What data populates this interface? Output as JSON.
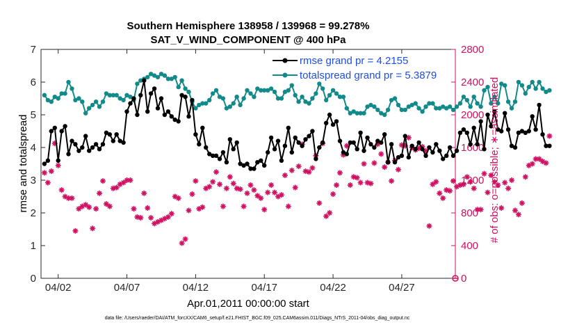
{
  "chart_data": {
    "type": "line",
    "title": "Southern Hemisphere 138958 / 139968 = 99.278%",
    "subtitle": "SAT_V_WIND_COMPONENT @ 400 hPa",
    "xlabel": "Apr.01,2011 00:00:00 start",
    "ylabel": "rmse and totalspread",
    "y2label": "# of obs: o=possible; ∗=assimilated",
    "footnote": "data file: /Users/raeder/DAI/ATM_forcXX/CAM6_setup/f.e21.FHIST_BGC.f09_025.CAM6assim.011/Diags_NTrS_2011-04/obs_diag_output.nc",
    "xlim": [
      0.75,
      30.9
    ],
    "ylim": [
      0,
      7
    ],
    "y2lim": [
      0,
      2800
    ],
    "xticks": [
      {
        "x": 2,
        "label": "04/02"
      },
      {
        "x": 7,
        "label": "04/07"
      },
      {
        "x": 12,
        "label": "04/12"
      },
      {
        "x": 17,
        "label": "04/17"
      },
      {
        "x": 22,
        "label": "04/22"
      },
      {
        "x": 27,
        "label": "04/27"
      }
    ],
    "yticks": [
      "0",
      "1",
      "2",
      "3",
      "4",
      "5",
      "6",
      "7"
    ],
    "y2ticks": [
      "0",
      "400",
      "800",
      "1200",
      "1600",
      "2000",
      "2400",
      "2800"
    ],
    "colors": {
      "rmse": "#000000",
      "spread": "#138a8a",
      "obs": "#d01060",
      "legend_text": "#1f4fe0",
      "right_axis": "#d01060"
    },
    "series": [
      {
        "name": "rmse grand pr = 4.2155",
        "x_start": 1.0,
        "x_step": 0.25,
        "values": [
          3.5,
          3.6,
          4.5,
          4.6,
          3.6,
          4.5,
          4.65,
          3.8,
          4.2,
          4.1,
          3.9,
          4.0,
          4.35,
          3.9,
          4.0,
          4.1,
          3.95,
          4.1,
          4.45,
          4.4,
          4.2,
          4.4,
          4.2,
          4.15,
          5.1,
          5.35,
          5.5,
          5.0,
          5.6,
          6.05,
          5.1,
          5.65,
          5.8,
          5.2,
          5.5,
          5.0,
          5.1,
          4.95,
          4.85,
          4.8,
          5.6,
          5.55,
          4.95,
          5.45,
          4.4,
          4.1,
          4.6,
          4.0,
          3.8,
          3.75,
          3.75,
          3.65,
          3.85,
          3.55,
          4.25,
          3.95,
          4.15,
          3.5,
          3.45,
          3.5,
          3.35,
          3.35,
          3.55,
          3.6,
          3.45,
          3.85,
          4.3,
          3.95,
          4.2,
          3.6,
          4.05,
          4.6,
          3.85,
          4.3,
          4.15,
          4.05,
          4.25,
          4.35,
          4.5,
          3.65,
          4.0,
          4.15,
          4.75,
          5.0,
          4.7,
          4.8,
          4.2,
          3.85,
          3.8,
          4.15,
          4.15,
          3.95,
          4.45,
          3.9,
          4.3,
          4.1,
          4.0,
          4.2,
          4.15,
          4.4,
          3.55,
          4.1,
          3.55,
          3.7,
          3.75,
          4.35,
          3.7,
          4.05,
          3.95,
          4.15,
          3.95,
          3.75,
          4.0,
          3.85,
          4.1,
          3.9,
          3.65,
          3.75,
          4.0,
          3.75,
          3.9,
          4.45,
          4.55,
          4.45,
          4.1,
          4.6,
          4.1,
          4.8,
          3.95,
          5.0,
          4.65,
          5.1,
          4.55,
          4.5,
          5.05,
          4.55,
          4.05,
          4.0,
          4.45,
          4.5,
          4.45,
          4.5,
          4.95,
          4.55,
          5.3,
          4.4,
          4.05,
          4.05
        ]
      },
      {
        "name": "totalspread grand pr = 5.3879",
        "x_start": 1.0,
        "x_step": 0.25,
        "values": [
          5.6,
          5.45,
          5.4,
          5.55,
          5.5,
          5.65,
          5.65,
          6.0,
          5.8,
          5.45,
          5.5,
          5.4,
          5.05,
          5.2,
          5.3,
          5.4,
          5.25,
          5.4,
          5.65,
          5.6,
          5.6,
          5.6,
          5.5,
          5.45,
          5.6,
          5.55,
          5.45,
          5.95,
          6.05,
          6.1,
          6.15,
          6.25,
          6.2,
          6.15,
          6.25,
          6.2,
          6.1,
          6.1,
          6.15,
          5.85,
          6.05,
          5.8,
          5.7,
          5.4,
          5.2,
          5.3,
          5.35,
          5.35,
          5.45,
          5.65,
          5.75,
          5.55,
          5.5,
          5.2,
          5.25,
          5.35,
          5.55,
          5.3,
          5.5,
          5.75,
          5.65,
          5.55,
          5.8,
          5.75,
          5.75,
          5.75,
          5.8,
          5.7,
          5.5,
          5.5,
          5.7,
          5.75,
          5.9,
          5.6,
          5.4,
          5.55,
          5.4,
          5.35,
          5.5,
          5.65,
          5.95,
          5.8,
          5.45,
          5.6,
          5.75,
          5.65,
          5.55,
          5.55,
          5.2,
          5.05,
          5.1,
          5.05,
          5.05,
          5.05,
          5.25,
          5.3,
          5.25,
          5.15,
          5.05,
          5.0,
          5.15,
          5.45,
          5.5,
          5.3,
          5.15,
          5.15,
          5.25,
          5.3,
          5.35,
          5.2,
          5.1,
          5.25,
          5.35,
          5.35,
          5.2,
          5.2,
          5.25,
          5.2,
          5.25,
          5.15,
          5.25,
          5.35,
          5.55,
          5.45,
          5.25,
          5.55,
          5.35,
          5.25,
          5.75,
          5.85,
          5.35,
          5.55,
          5.35,
          5.95,
          5.9,
          5.4,
          5.2,
          5.4,
          6.0,
          5.9,
          5.65,
          5.85,
          6.0,
          5.8,
          6.0,
          5.8,
          5.7,
          5.75
        ]
      }
    ],
    "assimilated_obs": {
      "x_start": 1.0,
      "x_step": 0.25,
      "values": [
        1290,
        1170,
        1310,
        1650,
        1380,
        1080,
        1000,
        980,
        980,
        580,
        850,
        880,
        900,
        870,
        610,
        850,
        1040,
        1190,
        910,
        880,
        1100,
        1110,
        1150,
        1170,
        1200,
        1200,
        850,
        750,
        740,
        1040,
        860,
        740,
        670,
        690,
        710,
        730,
        750,
        790,
        1000,
        980,
        430,
        480,
        830,
        1030,
        1190,
        850,
        870,
        1100,
        1120,
        1180,
        1300,
        1150,
        880,
        1100,
        1240,
        1160,
        1100,
        1090,
        880,
        1040,
        1140,
        1080,
        1010,
        980,
        840,
        1050,
        1140,
        1050,
        1000,
        1020,
        1260,
        880,
        1320,
        1110,
        1370,
        1640,
        1310,
        1300,
        1350,
        1500,
        920,
        1650,
        760,
        800,
        1030,
        1140,
        1290,
        1510,
        1620,
        1140,
        1240,
        1230,
        1170,
        1400,
        1170,
        1160,
        1410,
        1640,
        1520,
        1360,
        1420,
        1190,
        1440,
        1330,
        1630,
        1620,
        1720,
        1600,
        1570,
        1590,
        1610,
        1560,
        640,
        1150,
        1180,
        1040,
        980,
        1080,
        1070,
        1190,
        1120,
        1140,
        1150,
        1240,
        1180,
        1100,
        840,
        840,
        1280,
        1050,
        1260,
        1180,
        1140,
        860,
        1170,
        1100,
        1200,
        830,
        780,
        920,
        1240,
        1380,
        1400,
        1460,
        1460,
        1430,
        1410,
        1740
      ]
    },
    "possible_obs_marker": {
      "x": 30.9,
      "value": 0
    },
    "legend": [
      "rmse grand pr = 4.2155",
      "totalspread grand pr = 5.3879"
    ],
    "legend_position": "top-right"
  }
}
